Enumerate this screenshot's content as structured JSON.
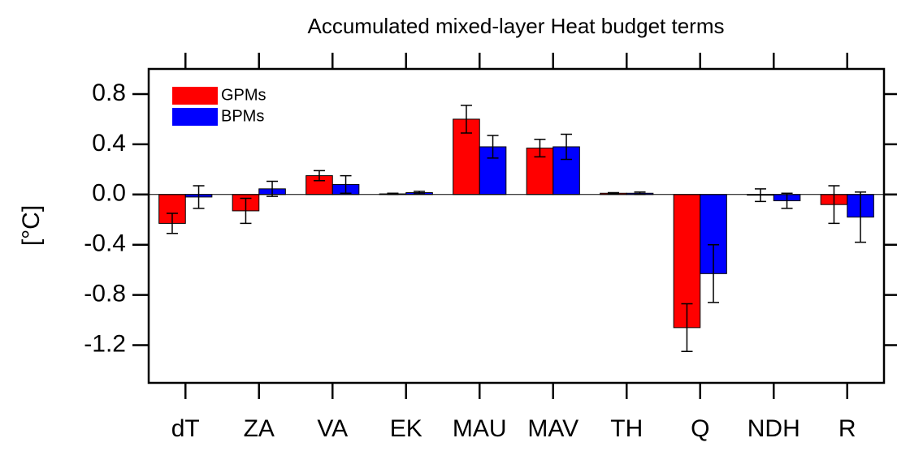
{
  "chart_data": {
    "type": "bar",
    "title": "Accumulated mixed-layer Heat budget terms",
    "ylabel": "[°C]",
    "categories": [
      "dT",
      "ZA",
      "VA",
      "EK",
      "MAU",
      "MAV",
      "TH",
      "Q",
      "NDH",
      "R"
    ],
    "series": [
      {
        "name": "GPMs",
        "color": "#ff0000",
        "values": [
          -0.23,
          -0.13,
          0.15,
          0.005,
          0.6,
          0.37,
          0.01,
          -1.06,
          -0.005,
          -0.08
        ],
        "errors": [
          0.08,
          0.1,
          0.04,
          0.005,
          0.11,
          0.07,
          0.005,
          0.19,
          0.05,
          0.15
        ]
      },
      {
        "name": "BPMs",
        "color": "#0000ff",
        "values": [
          -0.02,
          0.045,
          0.08,
          0.015,
          0.38,
          0.38,
          0.01,
          -0.63,
          -0.05,
          -0.18
        ],
        "errors": [
          0.09,
          0.06,
          0.07,
          0.01,
          0.09,
          0.1,
          0.01,
          0.23,
          0.06,
          0.2
        ]
      }
    ],
    "ylim": [
      -1.5,
      1.0
    ],
    "yticks": [
      -1.2,
      -0.8,
      -0.4,
      {
        "value": 0,
        "label": "0.0"
      },
      0.4,
      0.8
    ],
    "legend": "upper left"
  }
}
